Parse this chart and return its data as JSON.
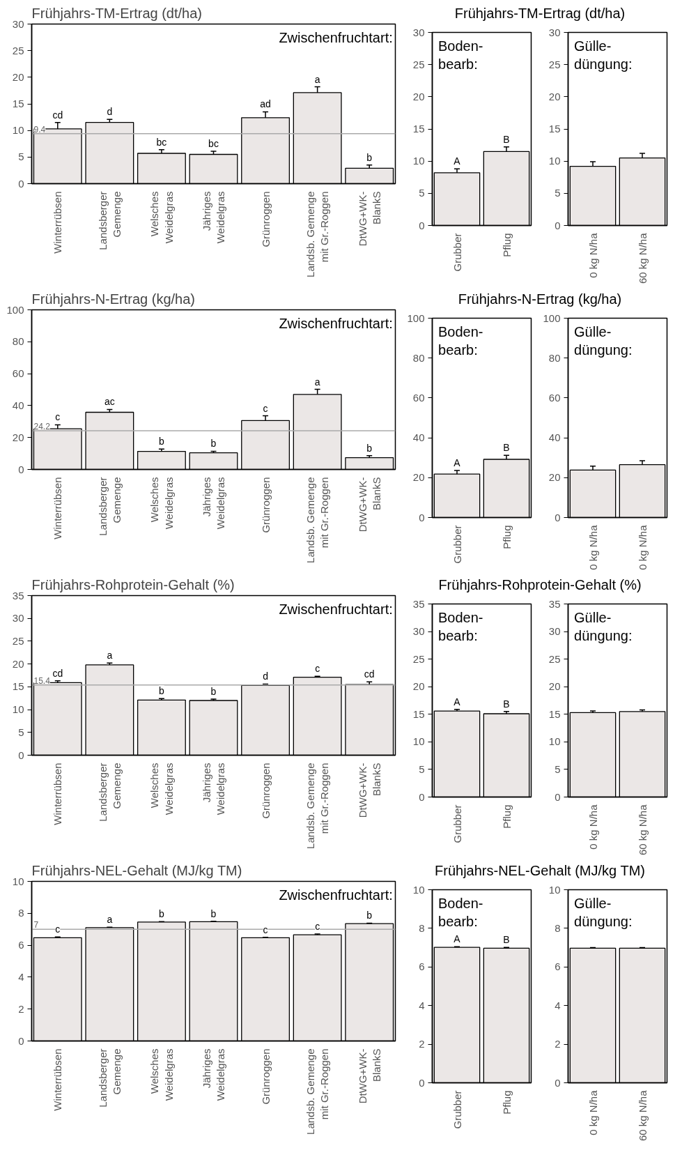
{
  "chart_data": [
    {
      "type": "bar",
      "title": "Frühjahrs-TM-Ertrag  (dt/ha)",
      "categories": [
        "Winterrübsen",
        "Landsberger\nGemenge",
        "Welsches\nWeidelgras",
        "Jähriges\nWeidelgras",
        "Grünroggen",
        "Landsb. Gemenge\nmit Gr.-Roggen",
        "DtWG+WK-\nBlankS"
      ],
      "values": [
        10.3,
        11.5,
        5.7,
        5.5,
        12.4,
        17.1,
        2.9
      ],
      "errors": [
        1.2,
        0.6,
        0.7,
        0.6,
        1.1,
        1.1,
        0.6
      ],
      "value_labels": [
        "cd",
        "d",
        "bc",
        "bc",
        "ad",
        "a",
        "b"
      ],
      "color": "#ebe7e6",
      "ylim": [
        0,
        30
      ],
      "yticks": [
        0,
        5,
        10,
        15,
        20,
        25,
        30
      ],
      "ref_lines": [
        {
          "axis": "y",
          "value": 9.4,
          "label": "9.4",
          "color": "#aaaaaa"
        }
      ],
      "annotations": [
        "Zwischenfruchtart:"
      ],
      "grid": false
    },
    {
      "type": "bar",
      "title": "Frühjahrs-TM-Ertrag  (dt/ha)",
      "categories": [
        "Grubber",
        "Pflug"
      ],
      "values": [
        8.2,
        11.5
      ],
      "errors": [
        0.6,
        0.7
      ],
      "value_labels": [
        "A",
        "B"
      ],
      "color": "#ebe7e6",
      "ylim": [
        0,
        30
      ],
      "yticks": [
        0,
        5,
        10,
        15,
        20,
        25,
        30
      ],
      "annotations": [
        "Boden-\nbearb:"
      ],
      "grid": false
    },
    {
      "type": "bar",
      "categories": [
        "0 kg N/ha",
        "60 kg N/ha"
      ],
      "values": [
        9.2,
        10.5
      ],
      "errors": [
        0.7,
        0.7
      ],
      "color": "#ebe7e6",
      "ylim": [
        0,
        30
      ],
      "yticks": [
        0,
        5,
        10,
        15,
        20,
        25,
        30
      ],
      "annotations": [
        "Gülle-\ndüngung:"
      ],
      "grid": false
    },
    {
      "type": "bar",
      "title": "Frühjahrs-N-Ertrag  (kg/ha)",
      "categories": [
        "Winterrübsen",
        "Landsberger\nGemenge",
        "Welsches\nWeidelgras",
        "Jähriges\nWeidelgras",
        "Grünroggen",
        "Landsb. Gemenge\nmit Gr.-Roggen",
        "DtWG+WK-\nBlankS"
      ],
      "values": [
        25.5,
        35.8,
        11.3,
        10.4,
        30.6,
        47.0,
        7.4
      ],
      "errors": [
        2.5,
        1.8,
        1.5,
        1.0,
        3.0,
        3.2,
        1.2
      ],
      "value_labels": [
        "c",
        "ac",
        "b",
        "b",
        "c",
        "a",
        "b"
      ],
      "color": "#ebe7e6",
      "ylim": [
        0,
        100
      ],
      "yticks": [
        0,
        20,
        40,
        60,
        80,
        100
      ],
      "ref_lines": [
        {
          "axis": "y",
          "value": 24.2,
          "label": "24.2",
          "color": "#aaaaaa"
        }
      ],
      "annotations": [
        "Zwischenfruchtart:"
      ],
      "grid": false
    },
    {
      "type": "bar",
      "title": "Frühjahrs-N-Ertrag  (kg/ha)",
      "categories": [
        "Grubber",
        "Pflug"
      ],
      "values": [
        21.8,
        29.2
      ],
      "errors": [
        1.8,
        2.0
      ],
      "value_labels": [
        "A",
        "B"
      ],
      "color": "#ebe7e6",
      "ylim": [
        0,
        100
      ],
      "yticks": [
        0,
        20,
        40,
        60,
        80,
        100
      ],
      "annotations": [
        "Boden-\nbearb:"
      ],
      "grid": false
    },
    {
      "type": "bar",
      "categories": [
        "0 kg N/ha",
        "0 kg N/ha"
      ],
      "values": [
        23.8,
        26.5
      ],
      "errors": [
        2.0,
        2.0
      ],
      "color": "#ebe7e6",
      "ylim": [
        0,
        100
      ],
      "yticks": [
        0,
        20,
        40,
        60,
        80,
        100
      ],
      "annotations": [
        "Gülle-\ndüngung:"
      ],
      "grid": false
    },
    {
      "type": "bar",
      "title": "Frühjahrs-Rohprotein-Gehalt  (%)",
      "categories": [
        "Winterrübsen",
        "Landsberger\nGemenge",
        "Welsches\nWeidelgras",
        "Jähriges\nWeidelgras",
        "Grünroggen",
        "Landsb. Gemenge\nmit Gr.-Roggen",
        "DtWG+WK-\nBlankS"
      ],
      "values": [
        15.9,
        19.8,
        12.1,
        12.0,
        15.3,
        17.1,
        15.5
      ],
      "errors": [
        0.4,
        0.4,
        0.3,
        0.3,
        0.3,
        0.2,
        0.6
      ],
      "value_labels": [
        "cd",
        "a",
        "b",
        "b",
        "d",
        "c",
        "cd"
      ],
      "color": "#ebe7e6",
      "ylim": [
        0,
        35
      ],
      "yticks": [
        0,
        5,
        10,
        15,
        20,
        25,
        30,
        35
      ],
      "ref_lines": [
        {
          "axis": "y",
          "value": 15.4,
          "label": "15.4",
          "color": "#aaaaaa"
        }
      ],
      "annotations": [
        "Zwischenfruchtart:"
      ],
      "grid": false
    },
    {
      "type": "bar",
      "title": "Frühjahrs-Rohprotein-Gehalt  (%)",
      "categories": [
        "Grubber",
        "Pflug"
      ],
      "values": [
        15.6,
        15.1
      ],
      "errors": [
        0.3,
        0.4
      ],
      "value_labels": [
        "A",
        "B"
      ],
      "color": "#ebe7e6",
      "ylim": [
        0,
        35
      ],
      "yticks": [
        0,
        5,
        10,
        15,
        20,
        25,
        30,
        35
      ],
      "annotations": [
        "Boden-\nbearb:"
      ],
      "grid": false
    },
    {
      "type": "bar",
      "categories": [
        "0 kg N/ha",
        "60 kg N/ha"
      ],
      "values": [
        15.3,
        15.5
      ],
      "errors": [
        0.3,
        0.3
      ],
      "color": "#ebe7e6",
      "ylim": [
        0,
        35
      ],
      "yticks": [
        0,
        5,
        10,
        15,
        20,
        25,
        30,
        35
      ],
      "annotations": [
        "Gülle-\ndüngung:"
      ],
      "grid": false
    },
    {
      "type": "bar",
      "title": "Frühjahrs-NEL-Gehalt  (MJ/kg TM)",
      "categories": [
        "Winterrübsen",
        "Landsberger\nGemenge",
        "Welsches\nWeidelgras",
        "Jähriges\nWeidelgras",
        "Grünroggen",
        "Landsb. Gemenge\nmit Gr.-Roggen",
        "DtWG+WK-\nBlankS"
      ],
      "values": [
        6.47,
        7.1,
        7.45,
        7.47,
        6.47,
        6.65,
        7.35
      ],
      "errors": [
        0.05,
        0.03,
        0.03,
        0.03,
        0.03,
        0.05,
        0.03
      ],
      "value_labels": [
        "c",
        "a",
        "b",
        "b",
        "c",
        "c",
        "b"
      ],
      "color": "#ebe7e6",
      "ylim": [
        0,
        10
      ],
      "yticks": [
        0,
        2,
        4,
        6,
        8,
        10
      ],
      "ref_lines": [
        {
          "axis": "y",
          "value": 7,
          "label": "7",
          "color": "#aaaaaa"
        }
      ],
      "annotations": [
        "Zwischenfruchtart:"
      ],
      "grid": false
    },
    {
      "type": "bar",
      "title": "Frühjahrs-NEL-Gehalt  (MJ/kg TM)",
      "categories": [
        "Grubber",
        "Pflug"
      ],
      "values": [
        7.02,
        6.97
      ],
      "errors": [
        0.03,
        0.04
      ],
      "value_labels": [
        "A",
        "B"
      ],
      "color": "#ebe7e6",
      "ylim": [
        0,
        10
      ],
      "yticks": [
        0,
        2,
        4,
        6,
        8,
        10
      ],
      "annotations": [
        "Boden-\nbearb:"
      ],
      "grid": false
    },
    {
      "type": "bar",
      "categories": [
        "0 kg N/ha",
        "60 kg N/ha"
      ],
      "values": [
        6.97,
        6.97
      ],
      "errors": [
        0.03,
        0.03
      ],
      "color": "#ebe7e6",
      "ylim": [
        0,
        10
      ],
      "yticks": [
        0,
        2,
        4,
        6,
        8,
        10
      ],
      "annotations": [
        "Gülle-\ndüngung:"
      ],
      "grid": false
    }
  ]
}
